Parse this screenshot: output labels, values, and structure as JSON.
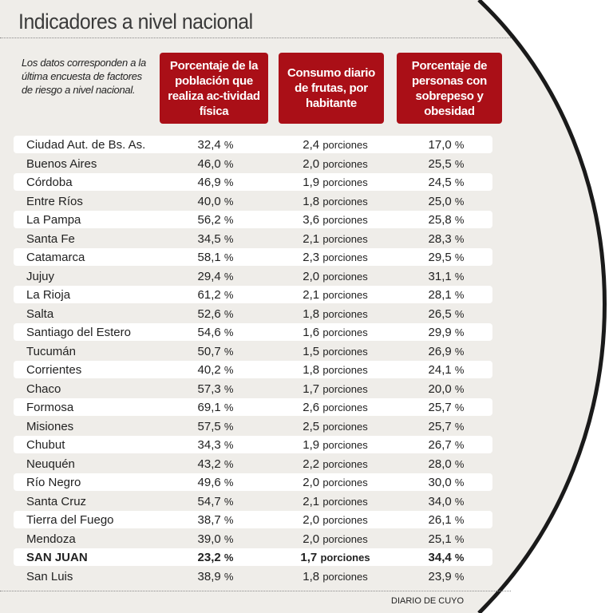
{
  "title": "Indicadores a nivel nacional",
  "intro": "Los datos corresponden a la última encuesta de factores de riesgo a nivel nacional.",
  "headers": [
    "Porcentaje de la población que realiza ac-tividad física",
    "Consumo diario de frutas, por habitante",
    "Porcentaje de personas con sobrepeso y obesidad"
  ],
  "units": {
    "pct": "%",
    "portions": "porciones"
  },
  "colors": {
    "header_bg": "#aa0f17",
    "panel_bg": "#efede9"
  },
  "rows": [
    {
      "name": "Ciudad Aut. de Bs. As.",
      "activity": "32,4",
      "fruit": "2,4",
      "overweight": "17,0"
    },
    {
      "name": "Buenos Aires",
      "activity": "46,0",
      "fruit": "2,0",
      "overweight": "25,5"
    },
    {
      "name": "Córdoba",
      "activity": "46,9",
      "fruit": "1,9",
      "overweight": "24,5"
    },
    {
      "name": "Entre Ríos",
      "activity": "40,0",
      "fruit": "1,8",
      "overweight": "25,0"
    },
    {
      "name": "La Pampa",
      "activity": "56,2",
      "fruit": "3,6",
      "overweight": "25,8"
    },
    {
      "name": "Santa Fe",
      "activity": "34,5",
      "fruit": "2,1",
      "overweight": "28,3"
    },
    {
      "name": "Catamarca",
      "activity": "58,1",
      "fruit": "2,3",
      "overweight": "29,5"
    },
    {
      "name": "Jujuy",
      "activity": "29,4",
      "fruit": "2,0",
      "overweight": "31,1"
    },
    {
      "name": "La Rioja",
      "activity": "61,2",
      "fruit": "2,1",
      "overweight": "28,1"
    },
    {
      "name": "Salta",
      "activity": "52,6",
      "fruit": "1,8",
      "overweight": "26,5"
    },
    {
      "name": "Santiago del Estero",
      "activity": "54,6",
      "fruit": "1,6",
      "overweight": "29,9"
    },
    {
      "name": "Tucumán",
      "activity": "50,7",
      "fruit": "1,5",
      "overweight": "26,9"
    },
    {
      "name": "Corrientes",
      "activity": "40,2",
      "fruit": "1,8",
      "overweight": "24,1"
    },
    {
      "name": "Chaco",
      "activity": "57,3",
      "fruit": "1,7",
      "overweight": "20,0"
    },
    {
      "name": "Formosa",
      "activity": "69,1",
      "fruit": "2,6",
      "overweight": "25,7"
    },
    {
      "name": "Misiones",
      "activity": "57,5",
      "fruit": "2,5",
      "overweight": "25,7"
    },
    {
      "name": "Chubut",
      "activity": "34,3",
      "fruit": "1,9",
      "overweight": "26,7"
    },
    {
      "name": "Neuquén",
      "activity": "43,2",
      "fruit": "2,2",
      "overweight": "28,0"
    },
    {
      "name": "Río Negro",
      "activity": "49,6",
      "fruit": "2,0",
      "overweight": "30,0"
    },
    {
      "name": "Santa Cruz",
      "activity": "54,7",
      "fruit": "2,1",
      "overweight": "34,0"
    },
    {
      "name": "Tierra del Fuego",
      "activity": "38,7",
      "fruit": "2,0",
      "overweight": "26,1"
    },
    {
      "name": "Mendoza",
      "activity": "39,0",
      "fruit": "2,0",
      "overweight": "25,1"
    },
    {
      "name": "SAN JUAN",
      "activity": "23,2",
      "fruit": "1,7",
      "overweight": "34,4",
      "highlight": true
    },
    {
      "name": "San Luis",
      "activity": "38,9",
      "fruit": "1,8",
      "overweight": "23,9"
    }
  ],
  "credit": "DIARIO DE CUYO"
}
